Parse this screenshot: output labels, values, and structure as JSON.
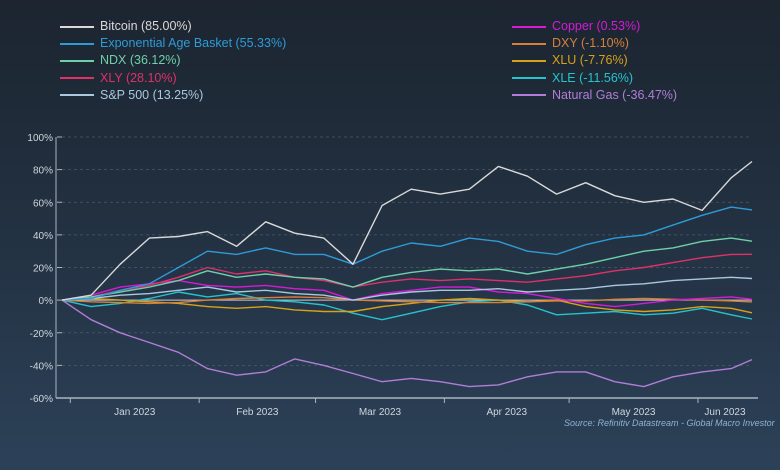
{
  "chart_data": {
    "type": "line",
    "title": "",
    "xlabel": "",
    "ylabel": "",
    "ylim": [
      -60,
      100
    ],
    "yticks": [
      "100%",
      "80%",
      "60%",
      "40%",
      "20%",
      "0%",
      "-20%",
      "-40%",
      "-60%"
    ],
    "ytick_values": [
      100,
      80,
      60,
      40,
      20,
      0,
      -20,
      -40,
      -60
    ],
    "xtick_labels": [
      "Jan 2023",
      "Feb 2023",
      "Mar 2023",
      "Apr 2023",
      "May 2023",
      "Jun 2023"
    ],
    "grid": true,
    "legend_placement": "top",
    "source": "Source: Refinitiv Datastream - Global Macro Investor",
    "x": [
      "2022-12-30",
      "2023-01-06",
      "2023-01-13",
      "2023-01-20",
      "2023-01-27",
      "2023-02-03",
      "2023-02-10",
      "2023-02-17",
      "2023-02-24",
      "2023-03-03",
      "2023-03-10",
      "2023-03-17",
      "2023-03-24",
      "2023-03-31",
      "2023-04-07",
      "2023-04-14",
      "2023-04-21",
      "2023-04-28",
      "2023-05-05",
      "2023-05-12",
      "2023-05-19",
      "2023-05-26",
      "2023-06-02",
      "2023-06-09",
      "2023-06-14"
    ],
    "series": [
      {
        "name": "Bitcoin",
        "legend": "Bitcoin (85.00%)",
        "color": "#d9d9d9",
        "values": [
          0,
          3,
          22,
          38,
          39,
          42,
          33,
          48,
          41,
          38,
          22,
          58,
          68,
          65,
          68,
          82,
          76,
          65,
          72,
          64,
          60,
          62,
          55,
          75,
          85
        ]
      },
      {
        "name": "Exponential Age Basket",
        "legend": "Exponential Age Basket (55.33%)",
        "color": "#2e9bd6",
        "values": [
          0,
          1,
          6,
          10,
          20,
          30,
          28,
          32,
          28,
          28,
          22,
          30,
          35,
          33,
          38,
          36,
          30,
          28,
          34,
          38,
          40,
          46,
          52,
          57,
          55.3
        ]
      },
      {
        "name": "NDX",
        "legend": "NDX (36.12%)",
        "color": "#6fcfa8",
        "values": [
          0,
          2,
          5,
          8,
          12,
          18,
          14,
          16,
          14,
          13,
          8,
          14,
          17,
          19,
          18,
          19,
          16,
          19,
          22,
          26,
          30,
          32,
          36,
          38,
          36.1
        ]
      },
      {
        "name": "XLY",
        "legend": "XLY (28.10%)",
        "color": "#e0306a",
        "values": [
          0,
          2,
          6,
          9,
          14,
          20,
          16,
          18,
          14,
          12,
          8,
          11,
          13,
          12,
          13,
          12,
          11,
          13,
          15,
          18,
          20,
          23,
          26,
          28,
          28.1
        ]
      },
      {
        "name": "S&P 500",
        "legend": "S&P 500 (13.25%)",
        "color": "#a9c8e0",
        "values": [
          0,
          1,
          3,
          4,
          6,
          8,
          5,
          6,
          4,
          3,
          0,
          3,
          5,
          6,
          6,
          7,
          5,
          6,
          7,
          9,
          10,
          12,
          13,
          14,
          13.25
        ]
      },
      {
        "name": "Copper",
        "legend": "Copper (0.53%)",
        "color": "#d61ad6",
        "values": [
          0,
          3,
          8,
          10,
          12,
          9,
          8,
          9,
          7,
          6,
          0,
          4,
          6,
          8,
          8,
          5,
          4,
          1,
          -2,
          -4,
          -2,
          0,
          1,
          2,
          0.53
        ]
      },
      {
        "name": "DXY",
        "legend": "DXY (-1.10%)",
        "color": "#d6813a",
        "values": [
          0,
          -1,
          -1.5,
          -2,
          -1.5,
          0,
          1,
          1.5,
          2,
          1.5,
          0,
          -0.5,
          -1,
          -1.5,
          -1.5,
          -1.5,
          -1,
          -0.5,
          -0.5,
          0.5,
          1,
          0.5,
          0,
          -0.5,
          -1.1
        ]
      },
      {
        "name": "XLU",
        "legend": "XLU (-7.76%)",
        "color": "#d6a21a",
        "values": [
          0,
          1,
          0,
          -1,
          -2,
          -4,
          -5,
          -4,
          -6,
          -7,
          -7,
          -4,
          -2,
          0,
          1,
          0,
          -1,
          0,
          -4,
          -6,
          -7,
          -6,
          -4,
          -5,
          -7.76
        ]
      },
      {
        "name": "XLE",
        "legend": "XLE (-11.56%)",
        "color": "#25c3cf",
        "values": [
          0,
          -4,
          -2,
          1,
          5,
          2,
          4,
          0,
          -1,
          -3,
          -8,
          -12,
          -8,
          -4,
          -1,
          0,
          -3,
          -9,
          -8,
          -7,
          -9,
          -8,
          -5,
          -9,
          -11.56
        ]
      },
      {
        "name": "Natural Gas",
        "legend": "Natural Gas (-36.47%)",
        "color": "#b07ed6",
        "values": [
          0,
          -12,
          -20,
          -26,
          -32,
          -42,
          -46,
          -44,
          -36,
          -40,
          -45,
          -50,
          -48,
          -50,
          -53,
          -52,
          -47,
          -44,
          -44,
          -50,
          -53,
          -47,
          -44,
          -42,
          -36.47
        ]
      }
    ]
  }
}
